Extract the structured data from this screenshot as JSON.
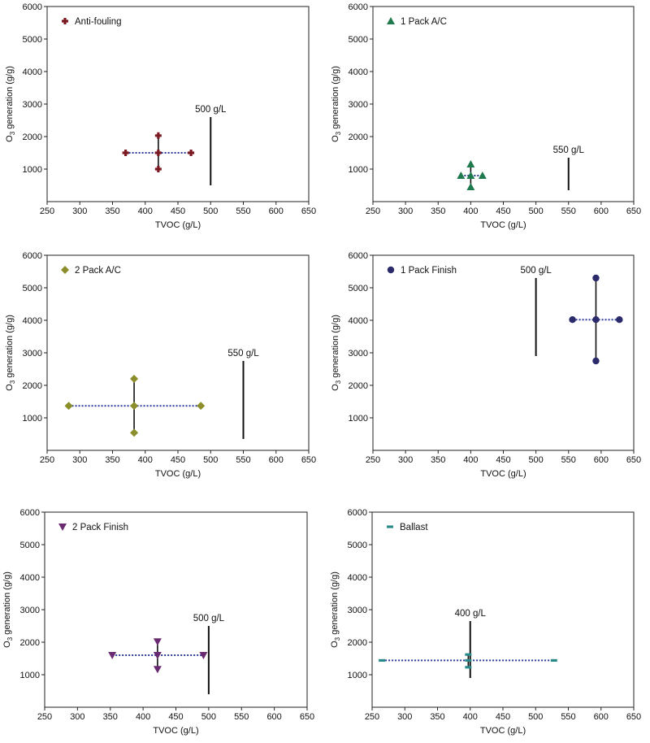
{
  "chart_data": [
    {
      "type": "scatter",
      "legend": "Anti-fouling",
      "marker": "plus",
      "color": "#7b1a22",
      "xlabel": "TVOC (g/L)",
      "ylabel_prefix": "O",
      "ylabel_sub": "3",
      "ylabel_suffix": " generation (g/g)",
      "xlim": [
        250,
        650
      ],
      "ylim": [
        0,
        6000
      ],
      "xticks": [
        250,
        300,
        350,
        400,
        450,
        500,
        550,
        600,
        650
      ],
      "yticks": [
        1000,
        2000,
        3000,
        4000,
        5000,
        6000
      ],
      "center": [
        420,
        1500
      ],
      "x_range": [
        370,
        470
      ],
      "y_range": [
        1000,
        2030
      ],
      "limit": {
        "x": 500,
        "y_range": [
          500,
          2600
        ],
        "label": "500 g/L"
      }
    },
    {
      "type": "scatter",
      "legend": "1 Pack A/C",
      "marker": "triangle-up",
      "color": "#1f7a4d",
      "xlabel": "TVOC (g/L)",
      "ylabel_prefix": "O",
      "ylabel_sub": "3",
      "ylabel_suffix": " generation (g/g)",
      "xlim": [
        250,
        650
      ],
      "ylim": [
        0,
        6000
      ],
      "xticks": [
        250,
        300,
        350,
        400,
        450,
        500,
        550,
        600,
        650
      ],
      "yticks": [
        1000,
        2000,
        3000,
        4000,
        5000,
        6000
      ],
      "center": [
        400,
        800
      ],
      "x_range": [
        385,
        418
      ],
      "y_range": [
        450,
        1150
      ],
      "limit": {
        "x": 550,
        "y_range": [
          350,
          1350
        ],
        "label": "550 g/L"
      }
    },
    {
      "type": "scatter",
      "legend": "2 Pack A/C",
      "marker": "diamond",
      "color": "#8b8e2a",
      "xlabel": "TVOC (g/L)",
      "ylabel_prefix": "O",
      "ylabel_sub": "3",
      "ylabel_suffix": " generation (g/g)",
      "xlim": [
        250,
        650
      ],
      "ylim": [
        0,
        6000
      ],
      "xticks": [
        250,
        300,
        350,
        400,
        450,
        500,
        550,
        600,
        650
      ],
      "yticks": [
        1000,
        2000,
        3000,
        4000,
        5000,
        6000
      ],
      "center": [
        383,
        1370
      ],
      "x_range": [
        283,
        485
      ],
      "y_range": [
        540,
        2200
      ],
      "limit": {
        "x": 550,
        "y_range": [
          350,
          2750
        ],
        "label": "550 g/L"
      }
    },
    {
      "type": "scatter",
      "legend": "1 Pack Finish",
      "marker": "circle",
      "color": "#2b2a6b",
      "xlabel": "TVOC (g/L)",
      "ylabel_prefix": "O",
      "ylabel_sub": "3",
      "ylabel_suffix": " generation (g/g)",
      "xlim": [
        250,
        650
      ],
      "ylim": [
        0,
        6000
      ],
      "xticks": [
        250,
        300,
        350,
        400,
        450,
        500,
        550,
        600,
        650
      ],
      "yticks": [
        1000,
        2000,
        3000,
        4000,
        5000,
        6000
      ],
      "center": [
        592,
        4020
      ],
      "x_range": [
        556,
        628
      ],
      "y_range": [
        2750,
        5300
      ],
      "limit": {
        "x": 500,
        "y_range": [
          2900,
          5300
        ],
        "label": "500 g/L"
      }
    },
    {
      "type": "scatter",
      "legend": "2 Pack Finish",
      "marker": "triangle-down",
      "color": "#6a2a72",
      "xlabel": "TVOC (g/L)",
      "ylabel_prefix": "O",
      "ylabel_sub": "3",
      "ylabel_suffix": " generation (g/g)",
      "xlim": [
        250,
        650
      ],
      "ylim": [
        0,
        6000
      ],
      "xticks": [
        250,
        300,
        350,
        400,
        450,
        500,
        550,
        600,
        650
      ],
      "yticks": [
        1000,
        2000,
        3000,
        4000,
        5000,
        6000
      ],
      "center": [
        422,
        1600
      ],
      "x_range": [
        353,
        492
      ],
      "y_range": [
        1170,
        2020
      ],
      "limit": {
        "x": 500,
        "y_range": [
          400,
          2500
        ],
        "label": "500 g/L"
      }
    },
    {
      "type": "scatter",
      "legend": "Ballast",
      "marker": "dash",
      "color": "#2a8a8a",
      "xlabel": "TVOC (g/L)",
      "ylabel_prefix": "O",
      "ylabel_sub": "3",
      "ylabel_suffix": " generation (g/g)",
      "xlim": [
        250,
        650
      ],
      "ylim": [
        0,
        6000
      ],
      "xticks": [
        250,
        300,
        350,
        400,
        450,
        500,
        550,
        600,
        650
      ],
      "yticks": [
        1000,
        2000,
        3000,
        4000,
        5000,
        6000
      ],
      "center": [
        397,
        1440
      ],
      "x_range": [
        265,
        528
      ],
      "y_range": [
        1230,
        1620
      ],
      "limit": {
        "x": 400,
        "y_range": [
          900,
          2650
        ],
        "label": "400 g/L"
      }
    }
  ]
}
